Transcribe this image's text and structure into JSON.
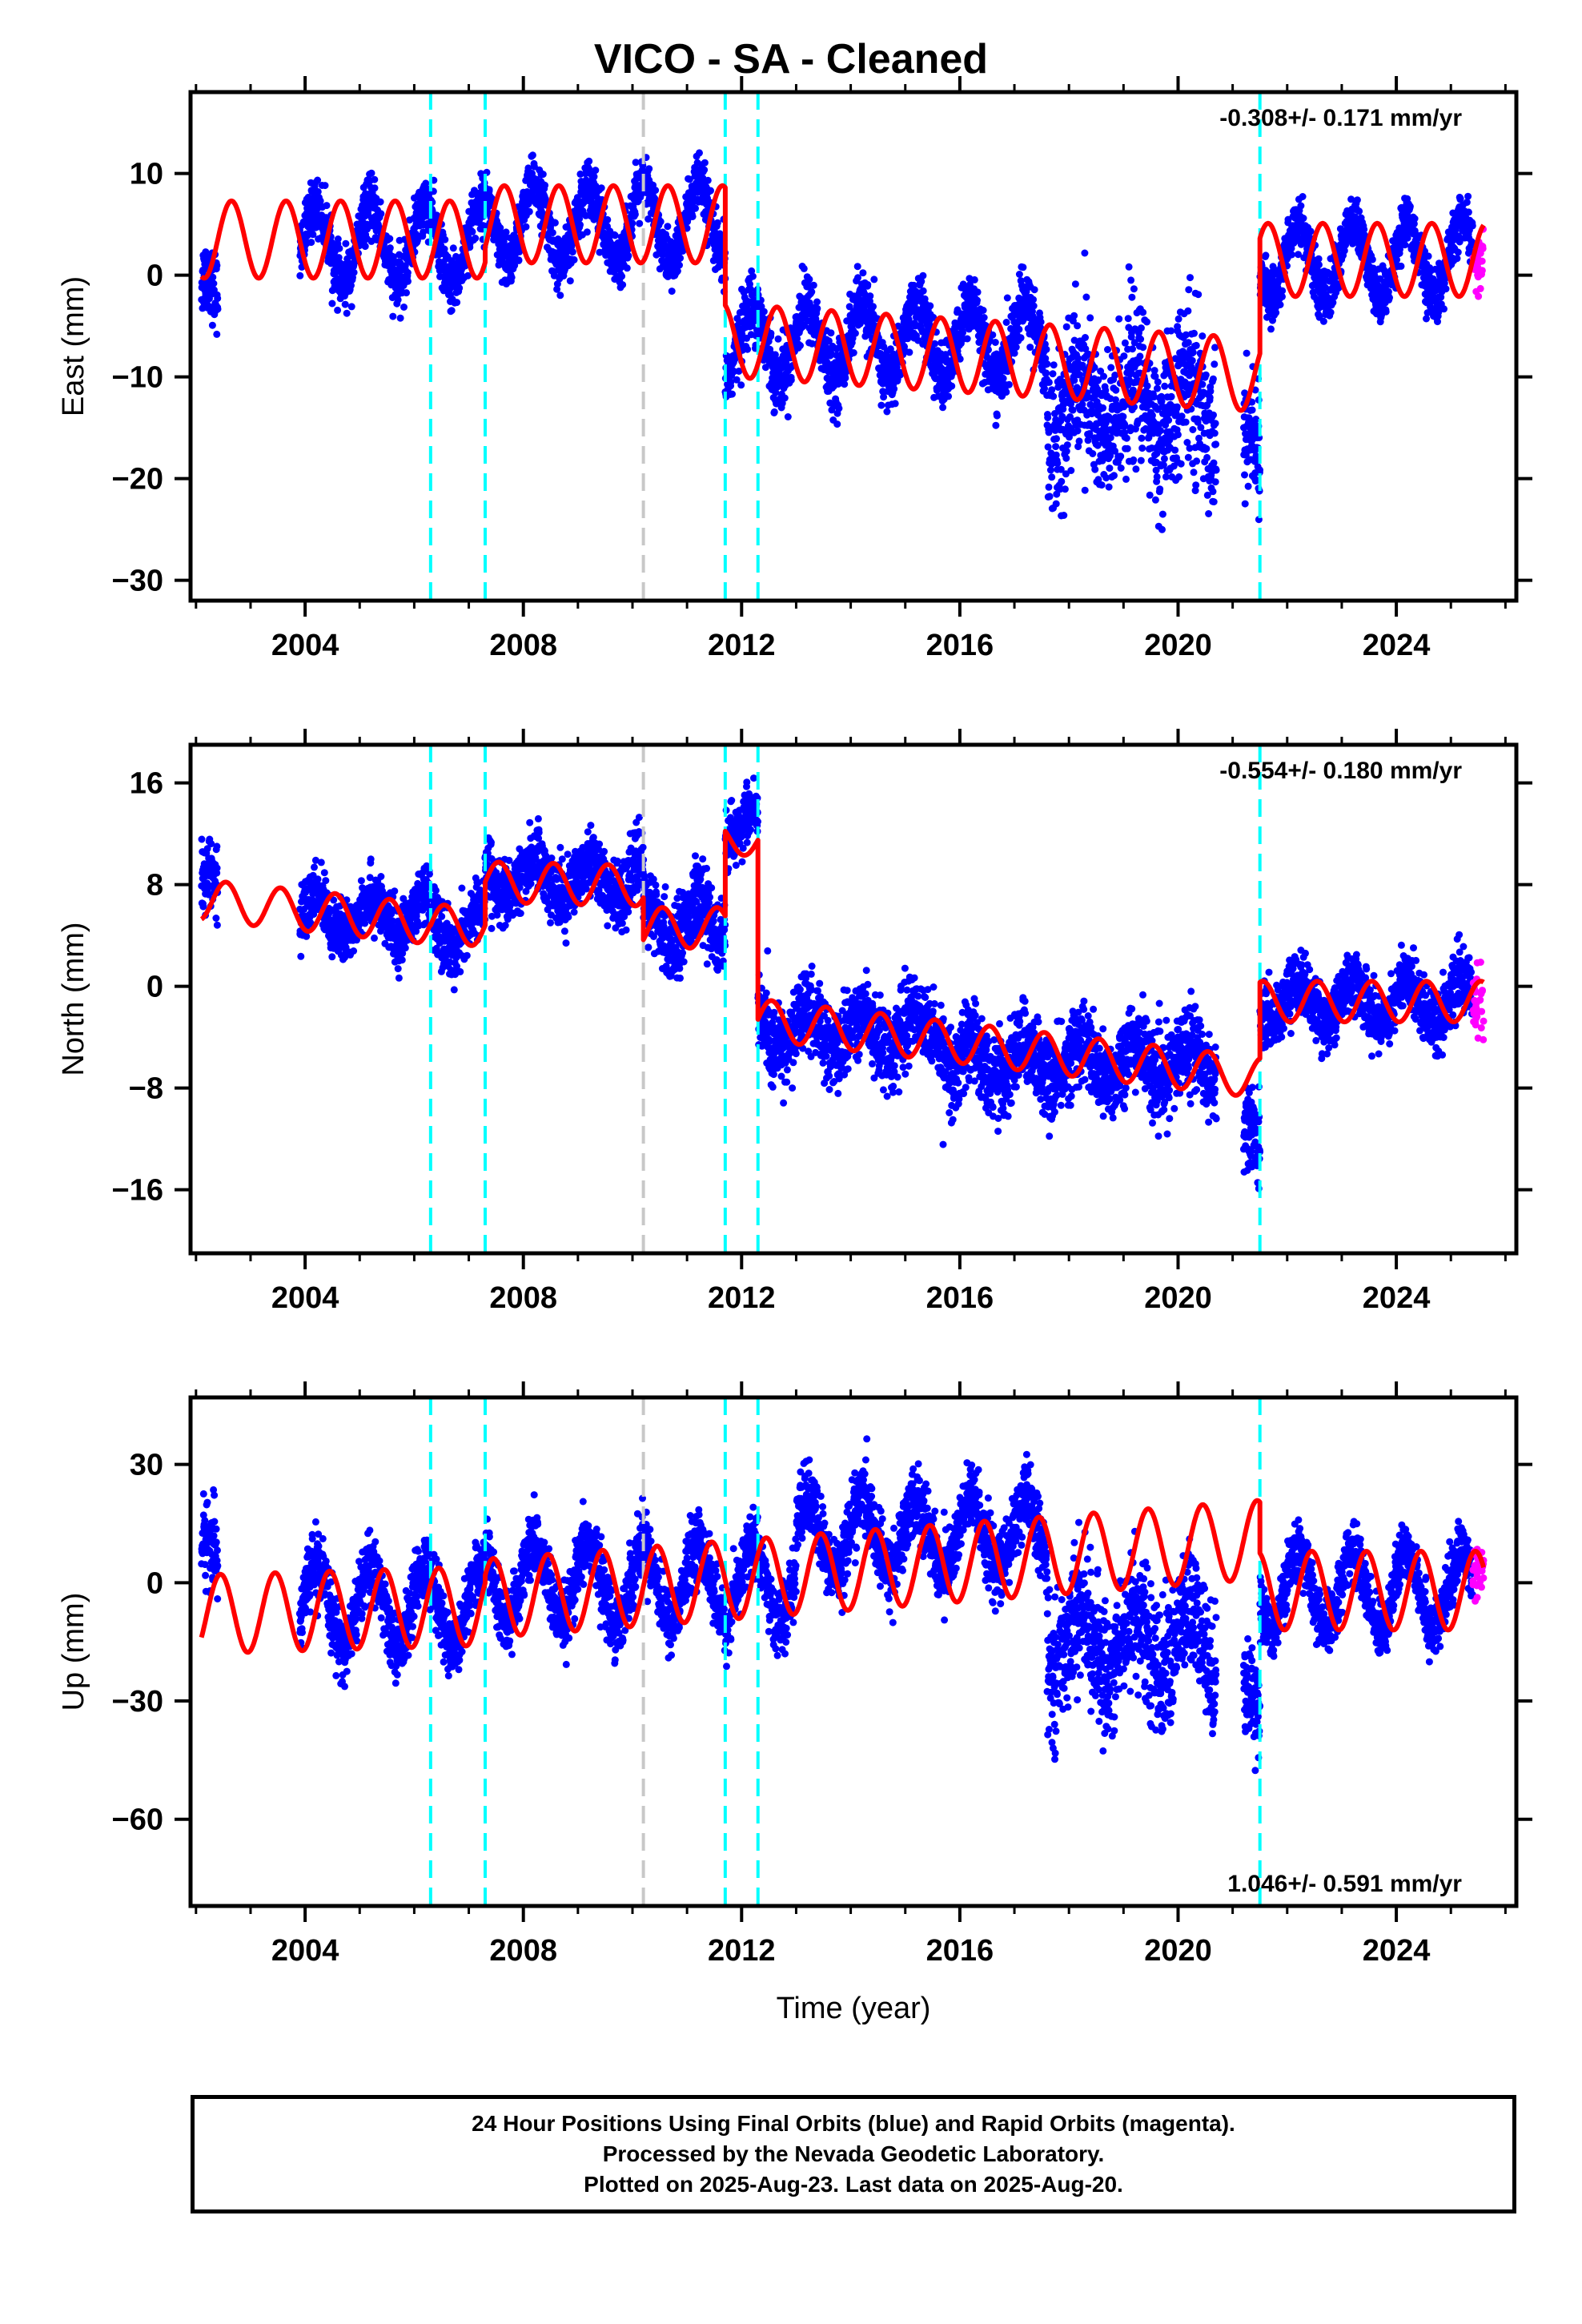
{
  "title": "VICO  - SA - Cleaned",
  "colors": {
    "final_orbits": "#0000ff",
    "rapid_orbits": "#ff00ff",
    "model": "#ff0000",
    "equipment_change": "#00ffff",
    "earthquake": "#c8c8c8"
  },
  "chart_data": [
    {
      "type": "scatter",
      "component": "east",
      "ylabel": "East (mm)",
      "xlabel": "",
      "xlim": [
        2001.9,
        2026.2
      ],
      "ylim": [
        -32,
        18
      ],
      "x_ticks": [
        2004,
        2008,
        2012,
        2016,
        2020,
        2024
      ],
      "x_tick_labels": [
        "2004",
        "2008",
        "2012",
        "2016",
        "2020",
        "2024"
      ],
      "y_ticks": [
        -30,
        -20,
        -10,
        0,
        10
      ],
      "y_tick_labels": [
        "−30",
        "−20",
        "−10",
        "0",
        "10"
      ],
      "rate_label": "-0.308+/- 0.171 mm/yr",
      "rate_position": "top-right",
      "vertical_lines": [
        {
          "x": 2006.3,
          "kind": "equipment_change"
        },
        {
          "x": 2007.3,
          "kind": "equipment_change"
        },
        {
          "x": 2010.2,
          "kind": "earthquake"
        },
        {
          "x": 2011.7,
          "kind": "equipment_change"
        },
        {
          "x": 2012.3,
          "kind": "equipment_change"
        },
        {
          "x": 2021.5,
          "kind": "equipment_change"
        }
      ],
      "model_segments": [
        {
          "x_start": 2002.1,
          "x_end": 2007.3,
          "offset": 3.5,
          "amplitude": 3.8,
          "phase": 2002.2
        },
        {
          "x_start": 2007.3,
          "x_end": 2011.7,
          "offset": 5.0,
          "amplitude": 3.8,
          "phase": 2002.2
        },
        {
          "x_start": 2011.7,
          "x_end": 2021.5,
          "offset": -6.5,
          "amplitude": 3.6,
          "phase": 2002.2,
          "slope": -0.35,
          "slope_ref": 2012.0
        },
        {
          "x_start": 2021.5,
          "x_end": 2025.6,
          "offset": 1.5,
          "amplitude": 3.6,
          "phase": 2002.2
        }
      ],
      "observed_segments": [
        {
          "x_start": 2002.1,
          "x_end": 2002.4,
          "center": -3.0,
          "spread": 4.0,
          "amp": 3.0
        },
        {
          "x_start": 2003.9,
          "x_end": 2007.3,
          "center": 3.0,
          "spread": 3.0,
          "amp": 3.8
        },
        {
          "x_start": 2007.3,
          "x_end": 2011.7,
          "center": 5.0,
          "spread": 3.0,
          "amp": 3.8
        },
        {
          "x_start": 2011.7,
          "x_end": 2017.6,
          "center": -6.5,
          "spread": 3.5,
          "amp": 3.6
        },
        {
          "x_start": 2017.6,
          "x_end": 2020.7,
          "center": -13.0,
          "spread": 8.5,
          "amp": 3.0
        },
        {
          "x_start": 2021.2,
          "x_end": 2021.5,
          "center": -17.0,
          "spread": 6.0,
          "amp": 2.0
        },
        {
          "x_start": 2021.5,
          "x_end": 2025.4,
          "center": 1.5,
          "spread": 2.8,
          "amp": 3.6
        }
      ],
      "rapid_segment": {
        "x_start": 2025.4,
        "x_end": 2025.6,
        "center": 1.5,
        "spread": 3.0
      }
    },
    {
      "type": "scatter",
      "component": "north",
      "ylabel": "North (mm)",
      "xlabel": "",
      "xlim": [
        2001.9,
        2026.2
      ],
      "ylim": [
        -21,
        19
      ],
      "x_ticks": [
        2004,
        2008,
        2012,
        2016,
        2020,
        2024
      ],
      "x_tick_labels": [
        "2004",
        "2008",
        "2012",
        "2016",
        "2020",
        "2024"
      ],
      "y_ticks": [
        -16,
        -8,
        0,
        8,
        16
      ],
      "y_tick_labels": [
        "−16",
        "−8",
        "0",
        "8",
        "16"
      ],
      "rate_label": "-0.554+/- 0.180 mm/yr",
      "rate_position": "top-right",
      "vertical_lines": [
        {
          "x": 2006.3,
          "kind": "equipment_change"
        },
        {
          "x": 2007.3,
          "kind": "equipment_change"
        },
        {
          "x": 2010.2,
          "kind": "earthquake"
        },
        {
          "x": 2011.7,
          "kind": "equipment_change"
        },
        {
          "x": 2012.3,
          "kind": "equipment_change"
        },
        {
          "x": 2021.5,
          "kind": "equipment_change"
        }
      ],
      "model_segments": [
        {
          "x_start": 2002.1,
          "x_end": 2006.3,
          "offset": 6.8,
          "amplitude": 1.6,
          "phase": 2002.1,
          "slope": -0.45,
          "slope_ref": 2002.1
        },
        {
          "x_start": 2006.3,
          "x_end": 2007.3,
          "offset": 4.8,
          "amplitude": 1.6,
          "phase": 2002.1
        },
        {
          "x_start": 2007.3,
          "x_end": 2010.2,
          "offset": 8.2,
          "amplitude": 1.6,
          "phase": 2002.1,
          "slope": -0.1,
          "slope_ref": 2007.3
        },
        {
          "x_start": 2010.2,
          "x_end": 2011.7,
          "offset": 4.6,
          "amplitude": 1.6,
          "phase": 2002.1
        },
        {
          "x_start": 2011.7,
          "x_end": 2012.3,
          "offset": 11.5,
          "amplitude": 1.2,
          "phase": 2002.1
        },
        {
          "x_start": 2012.3,
          "x_end": 2021.5,
          "offset": -2.6,
          "amplitude": 1.6,
          "phase": 2002.1,
          "slope": -0.5,
          "slope_ref": 2012.3
        },
        {
          "x_start": 2021.5,
          "x_end": 2025.6,
          "offset": -1.2,
          "amplitude": 1.6,
          "phase": 2002.1
        }
      ],
      "observed_segments": [
        {
          "x_start": 2002.1,
          "x_end": 2002.4,
          "center": 7.5,
          "spread": 3.0,
          "amp": 1.6
        },
        {
          "x_start": 2003.9,
          "x_end": 2006.3,
          "center": 5.5,
          "spread": 2.6,
          "amp": 1.6
        },
        {
          "x_start": 2006.3,
          "x_end": 2007.3,
          "center": 4.6,
          "spread": 2.6,
          "amp": 1.6
        },
        {
          "x_start": 2007.3,
          "x_end": 2010.2,
          "center": 8.5,
          "spread": 2.8,
          "amp": 1.6
        },
        {
          "x_start": 2010.2,
          "x_end": 2011.7,
          "center": 5.0,
          "spread": 3.2,
          "amp": 1.6
        },
        {
          "x_start": 2011.7,
          "x_end": 2012.3,
          "center": 12.5,
          "spread": 2.4,
          "amp": 1.2
        },
        {
          "x_start": 2012.3,
          "x_end": 2015.8,
          "center": -3.5,
          "spread": 3.4,
          "amp": 1.6
        },
        {
          "x_start": 2015.8,
          "x_end": 2020.7,
          "center": -6.0,
          "spread": 3.6,
          "amp": 1.6
        },
        {
          "x_start": 2021.2,
          "x_end": 2021.5,
          "center": -12.0,
          "spread": 4.0,
          "amp": 1.0
        },
        {
          "x_start": 2021.5,
          "x_end": 2025.4,
          "center": -1.2,
          "spread": 2.6,
          "amp": 1.6
        }
      ],
      "rapid_segment": {
        "x_start": 2025.4,
        "x_end": 2025.6,
        "center": -1.5,
        "spread": 3.0
      }
    },
    {
      "type": "scatter",
      "component": "up",
      "ylabel": "Up (mm)",
      "xlabel": "Time (year)",
      "xlim": [
        2001.9,
        2026.2
      ],
      "ylim": [
        -82,
        47
      ],
      "x_ticks": [
        2004,
        2008,
        2012,
        2016,
        2020,
        2024
      ],
      "x_tick_labels": [
        "2004",
        "2008",
        "2012",
        "2016",
        "2020",
        "2024"
      ],
      "y_ticks": [
        -60,
        -30,
        0,
        30
      ],
      "y_tick_labels": [
        "−60",
        "−30",
        "0",
        "30"
      ],
      "rate_label": "1.046+/- 0.591 mm/yr",
      "rate_position": "bottom-right",
      "vertical_lines": [
        {
          "x": 2006.3,
          "kind": "equipment_change"
        },
        {
          "x": 2007.3,
          "kind": "equipment_change"
        },
        {
          "x": 2010.2,
          "kind": "earthquake"
        },
        {
          "x": 2011.7,
          "kind": "equipment_change"
        },
        {
          "x": 2012.3,
          "kind": "equipment_change"
        },
        {
          "x": 2021.5,
          "kind": "equipment_change"
        }
      ],
      "model_segments": [
        {
          "x_start": 2002.1,
          "x_end": 2007.3,
          "offset": -8.0,
          "amplitude": 10.0,
          "phase": 2002.0,
          "slope": 0.4,
          "slope_ref": 2002.1
        },
        {
          "x_start": 2007.3,
          "x_end": 2021.5,
          "offset": -4.0,
          "amplitude": 10.0,
          "phase": 2002.0,
          "slope": 1.05,
          "slope_ref": 2007.3
        },
        {
          "x_start": 2021.5,
          "x_end": 2025.6,
          "offset": -2.0,
          "amplitude": 10.0,
          "phase": 2002.0
        }
      ],
      "observed_segments": [
        {
          "x_start": 2002.1,
          "x_end": 2002.4,
          "center": 3.0,
          "spread": 12.0,
          "amp": 8.0
        },
        {
          "x_start": 2003.9,
          "x_end": 2007.3,
          "center": -6.0,
          "spread": 9.0,
          "amp": 10.0
        },
        {
          "x_start": 2007.3,
          "x_end": 2013.0,
          "center": 0.0,
          "spread": 9.0,
          "amp": 10.0
        },
        {
          "x_start": 2013.0,
          "x_end": 2017.6,
          "center": 12.0,
          "spread": 10.0,
          "amp": 9.0
        },
        {
          "x_start": 2017.6,
          "x_end": 2020.7,
          "center": -15.0,
          "spread": 18.0,
          "amp": 8.0
        },
        {
          "x_start": 2021.2,
          "x_end": 2021.5,
          "center": -30.0,
          "spread": 14.0,
          "amp": 4.0
        },
        {
          "x_start": 2021.5,
          "x_end": 2025.4,
          "center": -2.0,
          "spread": 8.0,
          "amp": 10.0
        }
      ],
      "rapid_segment": {
        "x_start": 2025.4,
        "x_end": 2025.6,
        "center": 2.0,
        "spread": 7.0
      }
    }
  ],
  "footer": {
    "line1": "24 Hour Positions Using Final Orbits (blue) and Rapid Orbits (magenta).",
    "line2": "Processed by the Nevada Geodetic Laboratory.",
    "line3": "Plotted on 2025-Aug-23. Last data on 2025-Aug-20."
  }
}
